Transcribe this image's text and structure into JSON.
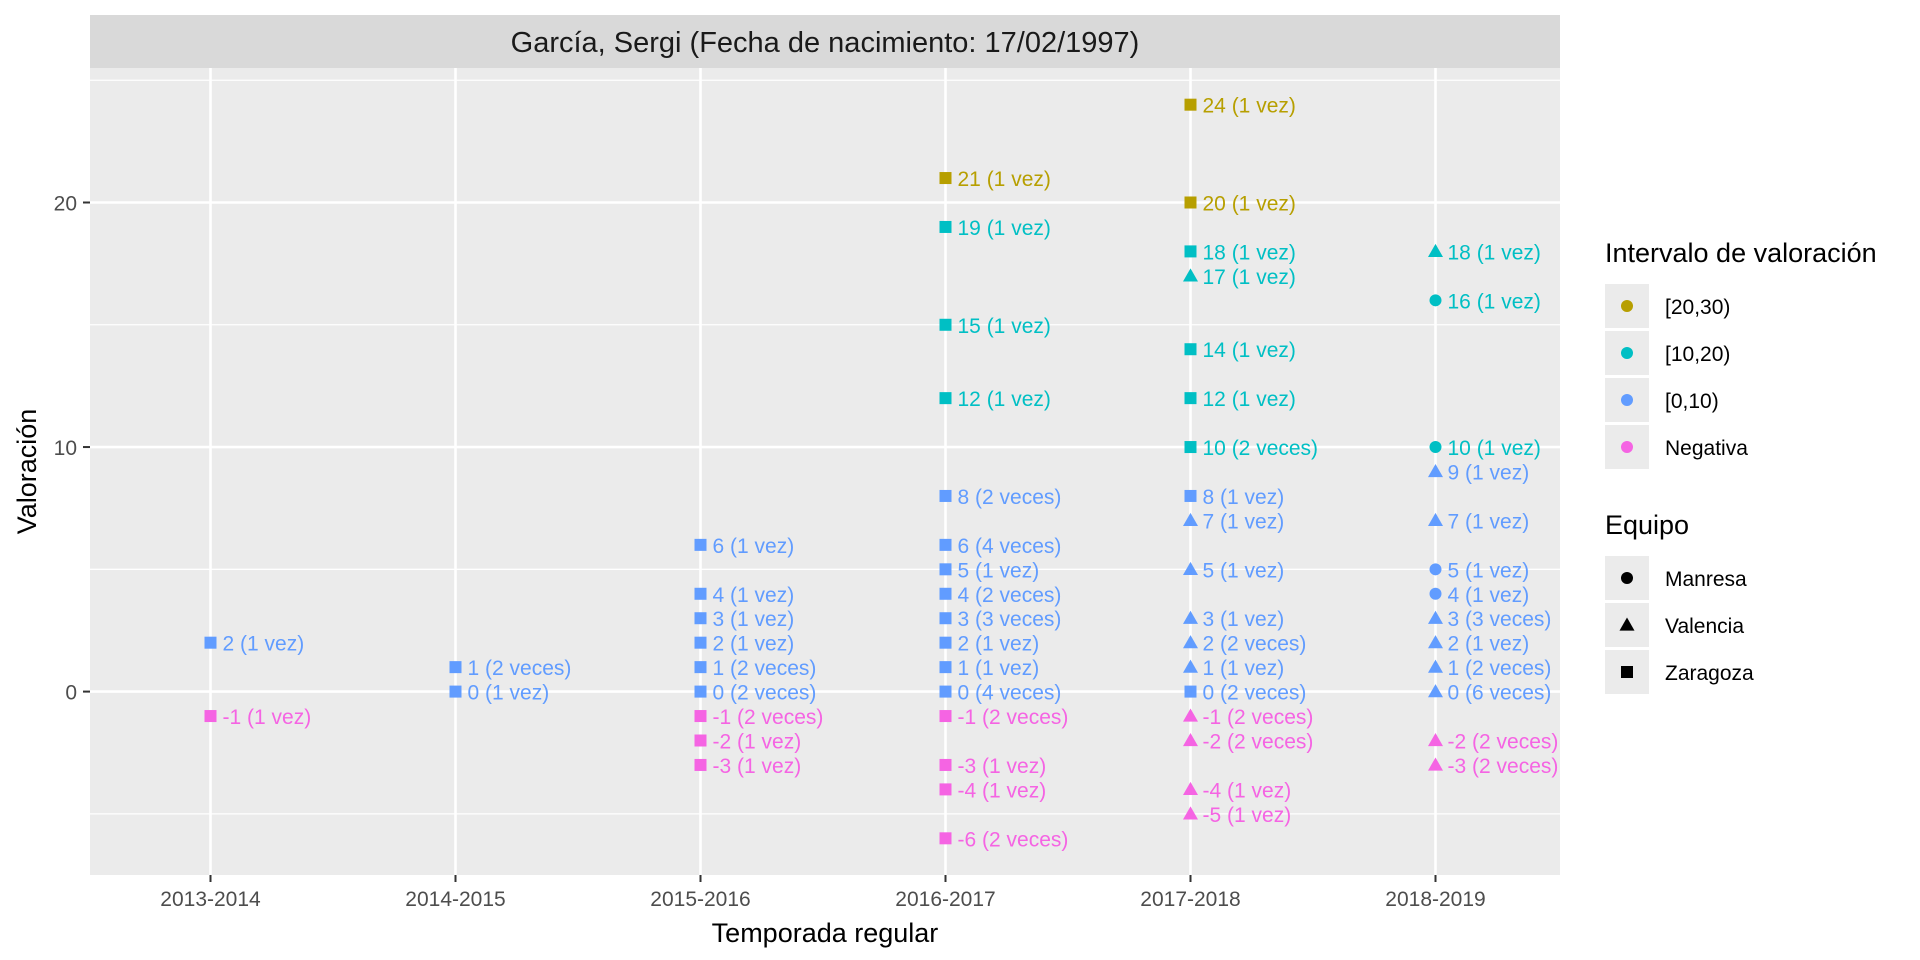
{
  "chart_data": {
    "type": "scatter",
    "title": "García, Sergi (Fecha de nacimiento: 17/02/1997)",
    "xlabel": "Temporada regular",
    "ylabel": "Valoración",
    "categories": [
      "2013-2014",
      "2014-2015",
      "2015-2016",
      "2016-2017",
      "2017-2018",
      "2018-2019"
    ],
    "ylim": [
      -7.5,
      25.5
    ],
    "yticks": [
      0,
      10,
      20
    ],
    "grid": true,
    "legend_placement": "right",
    "legends": [
      {
        "title": "Intervalo de valoración",
        "kind": "color",
        "entries": [
          {
            "label": "[20,30)",
            "color": "#b79f00"
          },
          {
            "label": "[10,20)",
            "color": "#00bfc4"
          },
          {
            "label": "[0,10)",
            "color": "#619cff"
          },
          {
            "label": "Negativa",
            "color": "#f564e3"
          }
        ]
      },
      {
        "title": "Equipo",
        "kind": "shape",
        "entries": [
          {
            "label": "Manresa",
            "shape": "circle"
          },
          {
            "label": "Valencia",
            "shape": "triangle"
          },
          {
            "label": "Zaragoza",
            "shape": "square"
          }
        ]
      }
    ],
    "points": [
      {
        "x": "2013-2014",
        "y": 2,
        "team": "Zaragoza",
        "label": "2 (1 vez)",
        "interval": "[0,10)"
      },
      {
        "x": "2013-2014",
        "y": -1,
        "team": "Zaragoza",
        "label": "-1 (1 vez)",
        "interval": "Negativa"
      },
      {
        "x": "2014-2015",
        "y": 1,
        "team": "Zaragoza",
        "label": "1 (2 veces)",
        "interval": "[0,10)"
      },
      {
        "x": "2014-2015",
        "y": 0,
        "team": "Zaragoza",
        "label": "0 (1 vez)",
        "interval": "[0,10)"
      },
      {
        "x": "2015-2016",
        "y": 6,
        "team": "Zaragoza",
        "label": "6 (1 vez)",
        "interval": "[0,10)"
      },
      {
        "x": "2015-2016",
        "y": 4,
        "team": "Zaragoza",
        "label": "4 (1 vez)",
        "interval": "[0,10)"
      },
      {
        "x": "2015-2016",
        "y": 3,
        "team": "Zaragoza",
        "label": "3 (1 vez)",
        "interval": "[0,10)"
      },
      {
        "x": "2015-2016",
        "y": 2,
        "team": "Zaragoza",
        "label": "2 (1 vez)",
        "interval": "[0,10)"
      },
      {
        "x": "2015-2016",
        "y": 1,
        "team": "Zaragoza",
        "label": "1 (2 veces)",
        "interval": "[0,10)"
      },
      {
        "x": "2015-2016",
        "y": 0,
        "team": "Zaragoza",
        "label": "0 (2 veces)",
        "interval": "[0,10)"
      },
      {
        "x": "2015-2016",
        "y": -1,
        "team": "Zaragoza",
        "label": "-1 (2 veces)",
        "interval": "Negativa"
      },
      {
        "x": "2015-2016",
        "y": -2,
        "team": "Zaragoza",
        "label": "-2 (1 vez)",
        "interval": "Negativa"
      },
      {
        "x": "2015-2016",
        "y": -3,
        "team": "Zaragoza",
        "label": "-3 (1 vez)",
        "interval": "Negativa"
      },
      {
        "x": "2016-2017",
        "y": 21,
        "team": "Zaragoza",
        "label": "21 (1 vez)",
        "interval": "[20,30)"
      },
      {
        "x": "2016-2017",
        "y": 19,
        "team": "Zaragoza",
        "label": "19 (1 vez)",
        "interval": "[10,20)"
      },
      {
        "x": "2016-2017",
        "y": 15,
        "team": "Zaragoza",
        "label": "15 (1 vez)",
        "interval": "[10,20)"
      },
      {
        "x": "2016-2017",
        "y": 12,
        "team": "Zaragoza",
        "label": "12 (1 vez)",
        "interval": "[10,20)"
      },
      {
        "x": "2016-2017",
        "y": 8,
        "team": "Zaragoza",
        "label": "8 (2 veces)",
        "interval": "[0,10)"
      },
      {
        "x": "2016-2017",
        "y": 6,
        "team": "Zaragoza",
        "label": "6 (4 veces)",
        "interval": "[0,10)"
      },
      {
        "x": "2016-2017",
        "y": 5,
        "team": "Zaragoza",
        "label": "5 (1 vez)",
        "interval": "[0,10)"
      },
      {
        "x": "2016-2017",
        "y": 4,
        "team": "Zaragoza",
        "label": "4 (2 veces)",
        "interval": "[0,10)"
      },
      {
        "x": "2016-2017",
        "y": 3,
        "team": "Zaragoza",
        "label": "3 (3 veces)",
        "interval": "[0,10)"
      },
      {
        "x": "2016-2017",
        "y": 2,
        "team": "Zaragoza",
        "label": "2 (1 vez)",
        "interval": "[0,10)"
      },
      {
        "x": "2016-2017",
        "y": 1,
        "team": "Zaragoza",
        "label": "1 (1 vez)",
        "interval": "[0,10)"
      },
      {
        "x": "2016-2017",
        "y": 0,
        "team": "Zaragoza",
        "label": "0 (4 veces)",
        "interval": "[0,10)"
      },
      {
        "x": "2016-2017",
        "y": -1,
        "team": "Zaragoza",
        "label": "-1 (2 veces)",
        "interval": "Negativa"
      },
      {
        "x": "2016-2017",
        "y": -3,
        "team": "Zaragoza",
        "label": "-3 (1 vez)",
        "interval": "Negativa"
      },
      {
        "x": "2016-2017",
        "y": -4,
        "team": "Zaragoza",
        "label": "-4 (1 vez)",
        "interval": "Negativa"
      },
      {
        "x": "2016-2017",
        "y": -6,
        "team": "Zaragoza",
        "label": "-6 (2 veces)",
        "interval": "Negativa"
      },
      {
        "x": "2017-2018",
        "y": 24,
        "team": "Zaragoza",
        "label": "24 (1 vez)",
        "interval": "[20,30)"
      },
      {
        "x": "2017-2018",
        "y": 20,
        "team": "Zaragoza",
        "label": "20 (1 vez)",
        "interval": "[20,30)"
      },
      {
        "x": "2017-2018",
        "y": 18,
        "team": "Zaragoza",
        "label": "18 (1 vez)",
        "interval": "[10,20)"
      },
      {
        "x": "2017-2018",
        "y": 17,
        "team": "Valencia",
        "label": "17 (1 vez)",
        "interval": "[10,20)"
      },
      {
        "x": "2017-2018",
        "y": 14,
        "team": "Zaragoza",
        "label": "14 (1 vez)",
        "interval": "[10,20)"
      },
      {
        "x": "2017-2018",
        "y": 12,
        "team": "Zaragoza",
        "label": "12 (1 vez)",
        "interval": "[10,20)"
      },
      {
        "x": "2017-2018",
        "y": 10,
        "team": "Zaragoza",
        "label": "10 (2 veces)",
        "interval": "[10,20)"
      },
      {
        "x": "2017-2018",
        "y": 8,
        "team": "Zaragoza",
        "label": "8 (1 vez)",
        "interval": "[0,10)"
      },
      {
        "x": "2017-2018",
        "y": 7,
        "team": "Valencia",
        "label": "7 (1 vez)",
        "interval": "[0,10)"
      },
      {
        "x": "2017-2018",
        "y": 5,
        "team": "Valencia",
        "label": "5 (1 vez)",
        "interval": "[0,10)"
      },
      {
        "x": "2017-2018",
        "y": 3,
        "team": "Valencia",
        "label": "3 (1 vez)",
        "interval": "[0,10)"
      },
      {
        "x": "2017-2018",
        "y": 2,
        "team": "Valencia",
        "label": "2 (2 veces)",
        "interval": "[0,10)"
      },
      {
        "x": "2017-2018",
        "y": 1,
        "team": "Valencia",
        "label": "1 (1 vez)",
        "interval": "[0,10)"
      },
      {
        "x": "2017-2018",
        "y": 0,
        "team": "Zaragoza",
        "label": "0 (2 veces)",
        "interval": "[0,10)"
      },
      {
        "x": "2017-2018",
        "y": -1,
        "team": "Valencia",
        "label": "-1 (2 veces)",
        "interval": "Negativa"
      },
      {
        "x": "2017-2018",
        "y": -2,
        "team": "Valencia",
        "label": "-2 (2 veces)",
        "interval": "Negativa"
      },
      {
        "x": "2017-2018",
        "y": -4,
        "team": "Valencia",
        "label": "-4 (1 vez)",
        "interval": "Negativa"
      },
      {
        "x": "2017-2018",
        "y": -5,
        "team": "Valencia",
        "label": "-5 (1 vez)",
        "interval": "Negativa"
      },
      {
        "x": "2018-2019",
        "y": 18,
        "team": "Valencia",
        "label": "18 (1 vez)",
        "interval": "[10,20)"
      },
      {
        "x": "2018-2019",
        "y": 16,
        "team": "Manresa",
        "label": "16 (1 vez)",
        "interval": "[10,20)"
      },
      {
        "x": "2018-2019",
        "y": 10,
        "team": "Manresa",
        "label": "10 (1 vez)",
        "interval": "[10,20)"
      },
      {
        "x": "2018-2019",
        "y": 9,
        "team": "Valencia",
        "label": "9 (1 vez)",
        "interval": "[0,10)"
      },
      {
        "x": "2018-2019",
        "y": 7,
        "team": "Valencia",
        "label": "7 (1 vez)",
        "interval": "[0,10)"
      },
      {
        "x": "2018-2019",
        "y": 5,
        "team": "Manresa",
        "label": "5 (1 vez)",
        "interval": "[0,10)"
      },
      {
        "x": "2018-2019",
        "y": 4,
        "team": "Manresa",
        "label": "4 (1 vez)",
        "interval": "[0,10)"
      },
      {
        "x": "2018-2019",
        "y": 3,
        "team": "Valencia",
        "label": "3 (3 veces)",
        "interval": "[0,10)"
      },
      {
        "x": "2018-2019",
        "y": 2,
        "team": "Valencia",
        "label": "2 (1 vez)",
        "interval": "[0,10)"
      },
      {
        "x": "2018-2019",
        "y": 1,
        "team": "Valencia",
        "label": "1 (2 veces)",
        "interval": "[0,10)"
      },
      {
        "x": "2018-2019",
        "y": 0,
        "team": "Valencia",
        "label": "0 (6 veces)",
        "interval": "[0,10)"
      },
      {
        "x": "2018-2019",
        "y": -2,
        "team": "Valencia",
        "label": "-2 (2 veces)",
        "interval": "Negativa"
      },
      {
        "x": "2018-2019",
        "y": -3,
        "team": "Valencia",
        "label": "-3 (2 veces)",
        "interval": "Negativa"
      }
    ]
  }
}
